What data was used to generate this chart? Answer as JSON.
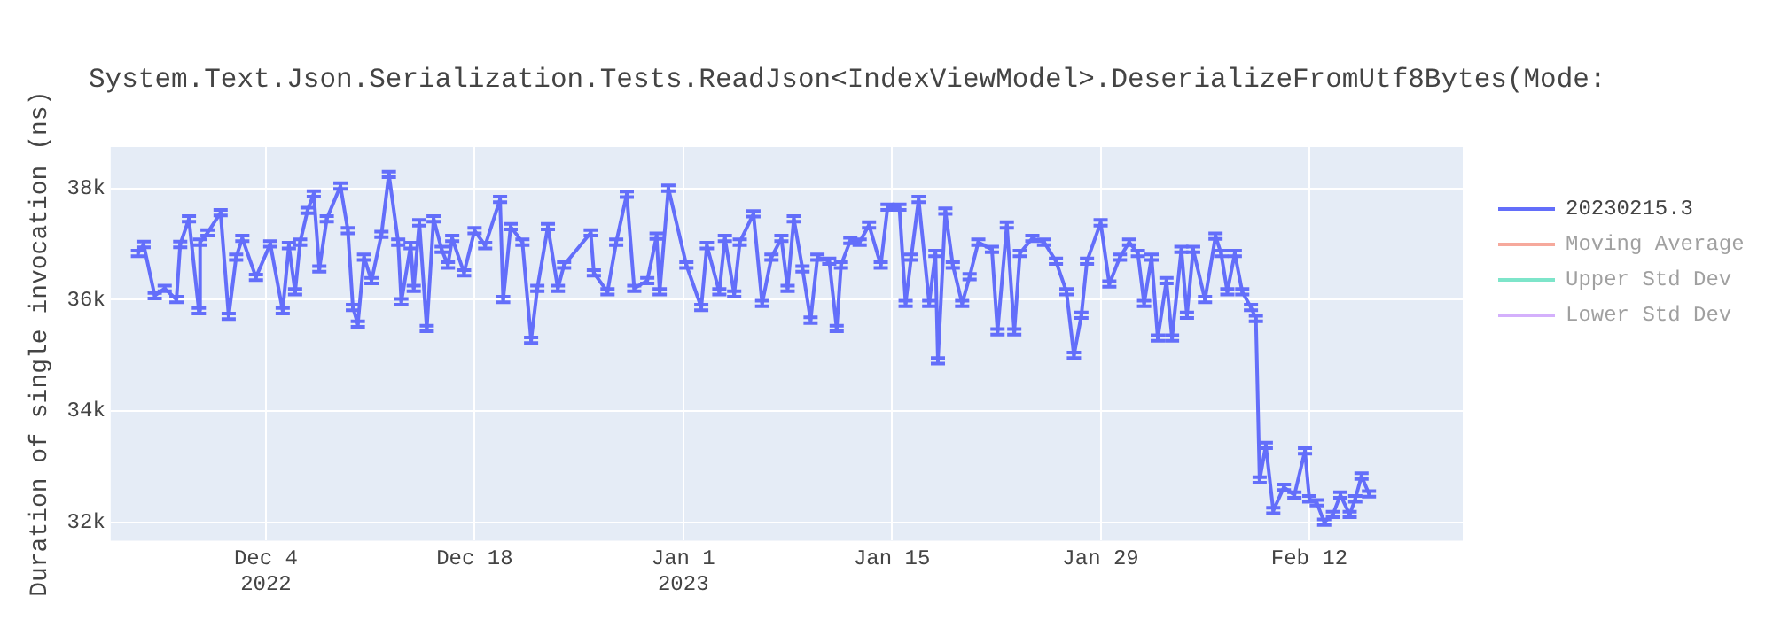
{
  "chart_data": {
    "type": "line",
    "title": "System.Text.Json.Serialization.Tests.ReadJson<IndexViewModel>.DeserializeFromUtf8Bytes(Mode:",
    "ylabel": "Duration of single invocation (ns)",
    "x": [
      "2022-11-25T10:00",
      "2022-11-25T19:00",
      "2022-11-26T13:00",
      "2022-11-27T05:00",
      "2022-11-28T00:00",
      "2022-11-28T06:00",
      "2022-11-28T20:00",
      "2022-11-29T12:00",
      "2022-11-29T14:00",
      "2022-11-30T02:00",
      "2022-11-30T23:00",
      "2022-12-01T12:00",
      "2022-12-02T00:00",
      "2022-12-02T10:00",
      "2022-12-03T08:00",
      "2022-12-04T07:00",
      "2022-12-05T03:00",
      "2022-12-05T13:00",
      "2022-12-05T23:00",
      "2022-12-06T07:00",
      "2022-12-06T19:00",
      "2022-12-07T05:00",
      "2022-12-07T14:00",
      "2022-12-08T02:00",
      "2022-12-09T00:00",
      "2022-12-09T12:00",
      "2022-12-09T20:00",
      "2022-12-10T04:00",
      "2022-12-10T14:00",
      "2022-12-11T02:00",
      "2022-12-11T18:00",
      "2022-12-12T06:00",
      "2022-12-12T21:00",
      "2022-12-13T02:00",
      "2022-12-13T17:00",
      "2022-12-13T22:00",
      "2022-12-14T07:00",
      "2022-12-14T19:00",
      "2022-12-15T06:00",
      "2022-12-15T19:00",
      "2022-12-16T05:00",
      "2022-12-16T12:00",
      "2022-12-17T07:00",
      "2022-12-18T00:00",
      "2022-12-18T17:00",
      "2022-12-19T17:00",
      "2022-12-19T22:00",
      "2022-12-20T10:00",
      "2022-12-21T05:00",
      "2022-12-21T19:00",
      "2022-12-22T05:00",
      "2022-12-22T22:00",
      "2022-12-23T14:00",
      "2022-12-24T00:00",
      "2022-12-25T19:00",
      "2022-12-26T00:00",
      "2022-12-26T22:00",
      "2022-12-27T12:00",
      "2022-12-28T05:00",
      "2022-12-28T17:00",
      "2022-12-29T14:00",
      "2022-12-30T05:00",
      "2022-12-30T10:00",
      "2022-12-31T00:00",
      "2023-01-01T05:00",
      "2023-01-02T05:00",
      "2023-01-02T14:00",
      "2023-01-03T10:00",
      "2023-01-03T19:00",
      "2023-01-04T10:00",
      "2023-01-04T19:00",
      "2023-01-05T17:00",
      "2023-01-06T07:00",
      "2023-01-06T22:00",
      "2023-01-07T14:00",
      "2023-01-08T00:00",
      "2023-01-08T10:00",
      "2023-01-09T00:00",
      "2023-01-09T13:00",
      "2023-01-10T00:00",
      "2023-01-10T19:00",
      "2023-01-11T07:00",
      "2023-01-11T14:00",
      "2023-01-12T05:00",
      "2023-01-12T20:00",
      "2023-01-13T11:00",
      "2023-01-14T06:00",
      "2023-01-14T17:00",
      "2023-01-15T12:00",
      "2023-01-15T22:00",
      "2023-01-16T07:00",
      "2023-01-16T19:00",
      "2023-01-17T12:00",
      "2023-01-17T22:00",
      "2023-01-18T02:00",
      "2023-01-18T14:00",
      "2023-01-19T02:00",
      "2023-01-19T17:00",
      "2023-01-20T05:00",
      "2023-01-20T19:00",
      "2023-01-21T17:00",
      "2023-01-22T02:00",
      "2023-01-22T17:00",
      "2023-01-23T05:00",
      "2023-01-23T14:00",
      "2023-01-24T10:00",
      "2023-01-25T05:00",
      "2023-01-26T00:00",
      "2023-01-26T17:00",
      "2023-01-27T05:00",
      "2023-01-27T17:00",
      "2023-01-28T02:00",
      "2023-01-29T00:00",
      "2023-01-29T14:00",
      "2023-01-30T07:00",
      "2023-01-30T22:00",
      "2023-01-31T12:00",
      "2023-01-31T22:00",
      "2023-02-01T10:00",
      "2023-02-01T20:00",
      "2023-02-02T10:00",
      "2023-02-02T19:00",
      "2023-02-03T10:00",
      "2023-02-03T19:00",
      "2023-02-04T05:00",
      "2023-02-05T00:00",
      "2023-02-05T17:00",
      "2023-02-06T02:00",
      "2023-02-06T12:00",
      "2023-02-07T00:00",
      "2023-02-07T12:00",
      "2023-02-08T02:00",
      "2023-02-08T10:00",
      "2023-02-08T16:00",
      "2023-02-09T02:00",
      "2023-02-09T14:00",
      "2023-02-10T07:00",
      "2023-02-11T00:00",
      "2023-02-11T17:00",
      "2023-02-12T00:00",
      "2023-02-12T12:00",
      "2023-02-13T00:00",
      "2023-02-13T14:00",
      "2023-02-14T02:00",
      "2023-02-14T17:00",
      "2023-02-15T02:00",
      "2023-02-15T12:00",
      "2023-02-16T00:00"
    ],
    "series": [
      {
        "name": "20230215.3",
        "color": "#636efa",
        "values": [
          36830,
          36990,
          36070,
          36200,
          36000,
          36990,
          37450,
          35800,
          37030,
          37200,
          37560,
          35700,
          36760,
          37100,
          36400,
          37000,
          35800,
          36970,
          36140,
          37030,
          37600,
          37900,
          36550,
          37450,
          38040,
          37240,
          35860,
          35560,
          36760,
          36340,
          37170,
          38250,
          37030,
          35960,
          36970,
          36200,
          37380,
          35480,
          37450,
          36900,
          36620,
          37100,
          36480,
          37240,
          36970,
          37800,
          36000,
          37310,
          37030,
          35270,
          36200,
          37310,
          36200,
          36620,
          37200,
          36480,
          36140,
          37030,
          37890,
          36200,
          36340,
          37140,
          36140,
          38000,
          36620,
          35860,
          36970,
          36140,
          37100,
          36100,
          37030,
          37540,
          35930,
          36760,
          37100,
          36200,
          37450,
          36550,
          35630,
          36760,
          36690,
          35480,
          36620,
          37060,
          37030,
          37340,
          36620,
          37660,
          37660,
          35930,
          36760,
          37800,
          35930,
          36830,
          34900,
          37590,
          36620,
          35930,
          36410,
          37030,
          36900,
          35420,
          37340,
          35420,
          36830,
          37100,
          37030,
          36690,
          36140,
          35000,
          35720,
          36690,
          37380,
          36280,
          36760,
          37030,
          36830,
          35930,
          36760,
          35310,
          36340,
          35310,
          36900,
          35720,
          36900,
          36000,
          37140,
          36830,
          36140,
          36830,
          36140,
          35860,
          35660,
          32760,
          33380,
          32210,
          32630,
          32490,
          33280,
          32420,
          32350,
          32000,
          32140,
          32490,
          32140,
          32420,
          32830,
          32510
        ],
        "errors": [
          50,
          50,
          50,
          50,
          50,
          50,
          50,
          50,
          50,
          50,
          50,
          50,
          50,
          50,
          50,
          50,
          50,
          50,
          50,
          50,
          50,
          50,
          50,
          50,
          50,
          50,
          50,
          50,
          50,
          50,
          50,
          50,
          50,
          50,
          50,
          50,
          50,
          50,
          50,
          50,
          50,
          50,
          50,
          50,
          50,
          50,
          50,
          50,
          50,
          50,
          50,
          50,
          50,
          50,
          50,
          50,
          50,
          50,
          50,
          50,
          50,
          50,
          50,
          50,
          50,
          50,
          50,
          50,
          50,
          50,
          50,
          50,
          50,
          50,
          50,
          50,
          50,
          50,
          50,
          50,
          50,
          50,
          50,
          50,
          50,
          50,
          50,
          50,
          50,
          50,
          50,
          50,
          50,
          50,
          50,
          50,
          50,
          50,
          50,
          50,
          50,
          50,
          50,
          50,
          50,
          50,
          50,
          50,
          50,
          50,
          50,
          50,
          50,
          50,
          50,
          50,
          50,
          50,
          50,
          50,
          50,
          50,
          50,
          50,
          50,
          50,
          50,
          50,
          50,
          50,
          50,
          50,
          50,
          50,
          50,
          50,
          50,
          50,
          50,
          50,
          50,
          50,
          50,
          50,
          50,
          50,
          50,
          50
        ]
      },
      {
        "name": "Moving Average",
        "color": "#ef553b",
        "values": [
          null,
          null,
          null,
          null,
          null,
          null,
          null,
          null,
          null,
          null,
          null,
          null,
          null,
          null,
          null,
          null,
          null,
          null,
          null,
          null,
          null,
          null,
          null,
          null,
          null,
          null,
          null,
          null,
          null,
          null,
          null,
          null,
          null,
          null,
          null,
          null,
          null,
          null,
          null,
          null,
          null,
          null,
          null,
          null,
          null,
          null,
          null,
          null,
          null,
          null,
          null,
          null,
          null,
          null,
          null,
          null,
          null,
          null,
          null,
          null,
          null,
          null,
          null,
          null,
          null,
          null,
          null,
          null,
          null,
          null,
          null,
          null,
          null,
          null,
          null,
          null,
          null,
          null,
          null,
          null,
          null,
          null,
          null,
          null,
          null,
          null,
          null,
          null,
          null,
          null,
          null,
          null,
          null,
          null,
          null,
          null,
          null,
          null,
          null,
          null,
          null,
          null,
          null,
          null,
          null,
          null,
          null,
          null,
          null,
          null,
          null,
          null,
          null,
          null,
          null,
          null,
          null,
          null,
          null,
          null,
          null,
          null,
          null,
          null,
          null,
          null,
          null,
          null,
          null,
          null,
          null,
          null,
          null,
          null,
          null,
          null,
          null,
          null,
          null,
          null,
          null,
          null,
          null,
          null,
          null,
          null,
          null,
          null
        ]
      },
      {
        "name": "Upper Std Dev",
        "color": "#00cc96",
        "values": [
          null,
          null,
          null,
          null,
          null,
          null,
          null,
          null,
          null,
          null,
          null,
          null,
          null,
          null,
          null,
          null,
          null,
          null,
          null,
          null,
          null,
          null,
          null,
          null,
          null,
          null,
          null,
          null,
          null,
          null,
          null,
          null,
          null,
          null,
          null,
          null,
          null,
          null,
          null,
          null,
          null,
          null,
          null,
          null,
          null,
          null,
          null,
          null,
          null,
          null,
          null,
          null,
          null,
          null,
          null,
          null,
          null,
          null,
          null,
          null,
          null,
          null,
          null,
          null,
          null,
          null,
          null,
          null,
          null,
          null,
          null,
          null,
          null,
          null,
          null,
          null,
          null,
          null,
          null,
          null,
          null,
          null,
          null,
          null,
          null,
          null,
          null,
          null,
          null,
          null,
          null,
          null,
          null,
          null,
          null,
          null,
          null,
          null,
          null,
          null,
          null,
          null,
          null,
          null,
          null,
          null,
          null,
          null,
          null,
          null,
          null,
          null,
          null,
          null,
          null,
          null,
          null,
          null,
          null,
          null,
          null,
          null,
          null,
          null,
          null,
          null,
          null,
          null,
          null,
          null,
          null,
          null,
          null,
          null,
          null,
          null,
          null,
          null,
          null,
          null,
          null,
          null,
          null,
          null,
          null,
          null,
          null,
          null
        ]
      },
      {
        "name": "Lower Std Dev",
        "color": "#ab63fa",
        "values": [
          null,
          null,
          null,
          null,
          null,
          null,
          null,
          null,
          null,
          null,
          null,
          null,
          null,
          null,
          null,
          null,
          null,
          null,
          null,
          null,
          null,
          null,
          null,
          null,
          null,
          null,
          null,
          null,
          null,
          null,
          null,
          null,
          null,
          null,
          null,
          null,
          null,
          null,
          null,
          null,
          null,
          null,
          null,
          null,
          null,
          null,
          null,
          null,
          null,
          null,
          null,
          null,
          null,
          null,
          null,
          null,
          null,
          null,
          null,
          null,
          null,
          null,
          null,
          null,
          null,
          null,
          null,
          null,
          null,
          null,
          null,
          null,
          null,
          null,
          null,
          null,
          null,
          null,
          null,
          null,
          null,
          null,
          null,
          null,
          null,
          null,
          null,
          null,
          null,
          null,
          null,
          null,
          null,
          null,
          null,
          null,
          null,
          null,
          null,
          null,
          null,
          null,
          null,
          null,
          null,
          null,
          null,
          null,
          null,
          null,
          null,
          null,
          null,
          null,
          null,
          null,
          null,
          null,
          null,
          null,
          null,
          null,
          null,
          null,
          null,
          null,
          null,
          null,
          null,
          null,
          null,
          null,
          null,
          null,
          null,
          null,
          null,
          null,
          null,
          null,
          null,
          null,
          null,
          null,
          null,
          null,
          null,
          null
        ]
      }
    ],
    "xlim": [
      "2022-11-23T14:00",
      "2023-02-22T07:00"
    ],
    "xticks": [
      {
        "value": "2022-12-04",
        "label": "Dec 4\n2022"
      },
      {
        "value": "2022-12-18",
        "label": "Dec 18"
      },
      {
        "value": "2023-01-01",
        "label": "Jan 1\n2023"
      },
      {
        "value": "2023-01-15",
        "label": "Jan 15"
      },
      {
        "value": "2023-01-29",
        "label": "Jan 29"
      },
      {
        "value": "2023-02-12",
        "label": "Feb 12"
      }
    ],
    "ylim": [
      31670,
      38740
    ],
    "yticks": [
      {
        "value": 32000,
        "label": "32k"
      },
      {
        "value": 34000,
        "label": "34k"
      },
      {
        "value": 36000,
        "label": "36k"
      },
      {
        "value": 38000,
        "label": "38k"
      }
    ],
    "grid": true,
    "legend": "right",
    "marker": "none",
    "line_style": "solid"
  }
}
